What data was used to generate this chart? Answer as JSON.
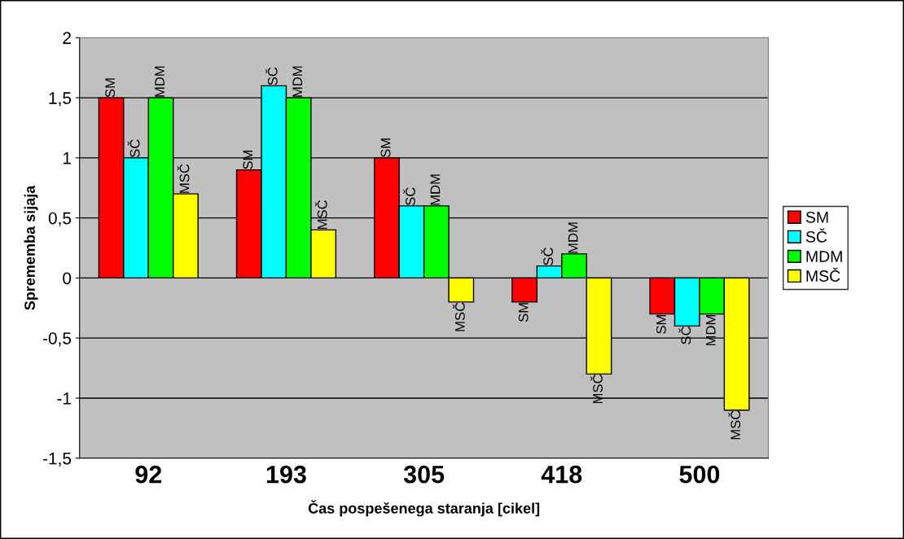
{
  "chart_data": {
    "type": "bar",
    "xlabel": "Čas pospešenega staranja [cikel]",
    "ylabel": "Sprememba sijaja",
    "categories": [
      "92",
      "193",
      "305",
      "418",
      "500"
    ],
    "series": [
      {
        "name": "SM",
        "color": "#ff0000",
        "values": [
          1.5,
          0.9,
          1.0,
          -0.2,
          -0.3
        ]
      },
      {
        "name": "SČ",
        "color": "#00ffff",
        "values": [
          1.0,
          1.6,
          0.6,
          0.1,
          -0.4
        ]
      },
      {
        "name": "MDM",
        "color": "#00ff00",
        "values": [
          1.5,
          1.5,
          0.6,
          0.2,
          -0.3
        ]
      },
      {
        "name": "MSČ",
        "color": "#ffff00",
        "values": [
          0.7,
          0.4,
          -0.2,
          -0.8,
          -1.1
        ]
      }
    ],
    "ylim": [
      -1.5,
      2
    ],
    "yticks": [
      {
        "value": -1.5,
        "label": "-1,5"
      },
      {
        "value": -1,
        "label": "-1"
      },
      {
        "value": -0.5,
        "label": "-0,5"
      },
      0,
      {
        "value": 0.5,
        "label": "0,5"
      },
      1,
      {
        "value": 1.5,
        "label": "1,5"
      },
      2
    ],
    "grid": "y",
    "legend": "right"
  }
}
